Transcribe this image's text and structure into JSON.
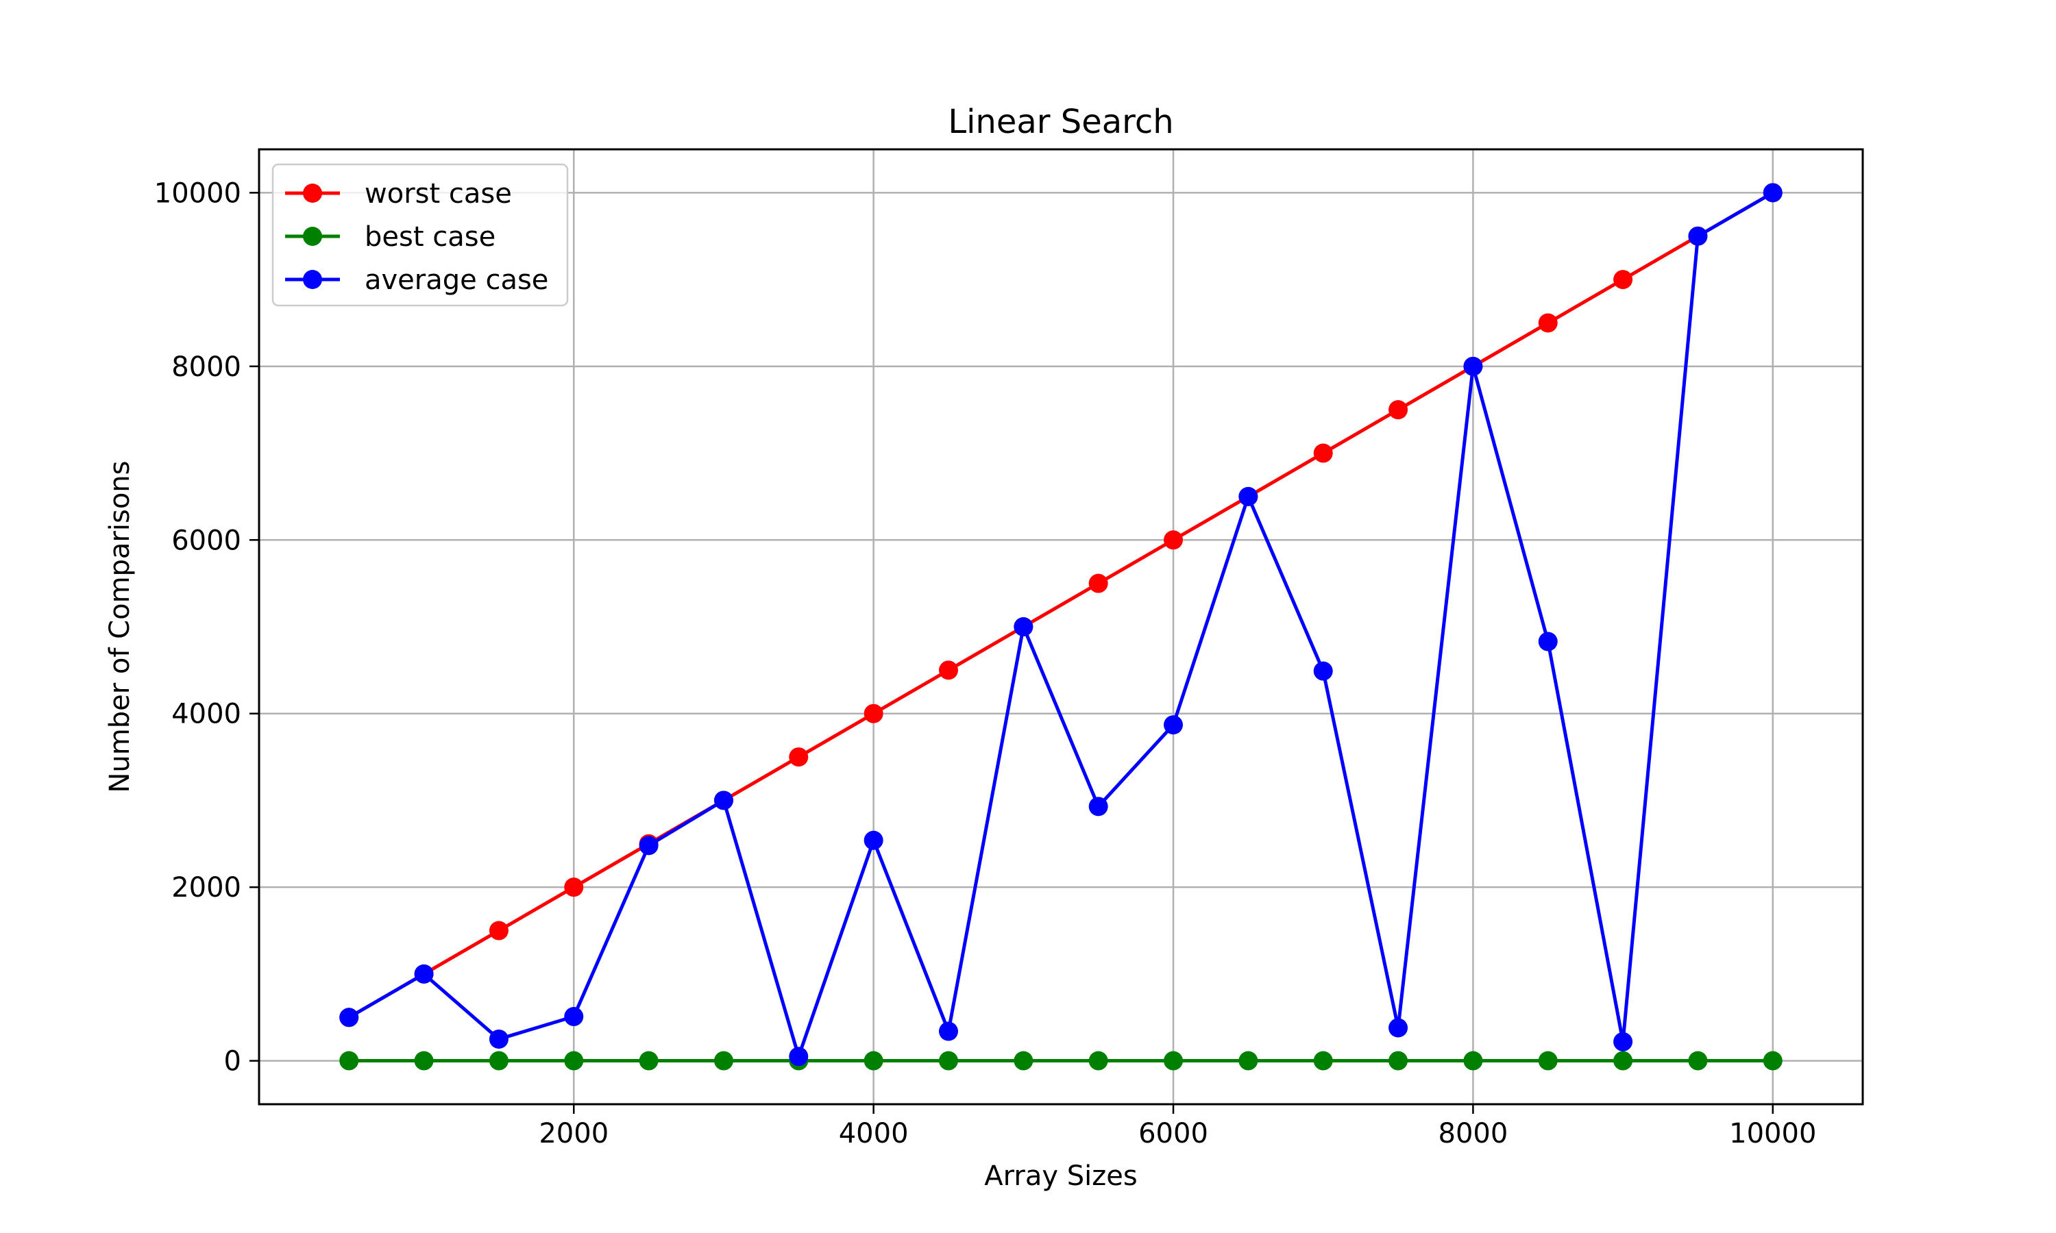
{
  "chart_data": {
    "type": "line",
    "title": "Linear Search",
    "xlabel": "Array Sizes",
    "ylabel": "Number of Comparisons",
    "xlim": [
      -100,
      10600
    ],
    "ylim": [
      -500,
      10500
    ],
    "xticks": [
      2000,
      4000,
      6000,
      8000,
      10000
    ],
    "yticks": [
      0,
      2000,
      4000,
      6000,
      8000,
      10000
    ],
    "grid": true,
    "legend_position": "top-left",
    "x": [
      500,
      1000,
      1500,
      2000,
      2500,
      3000,
      3500,
      4000,
      4500,
      5000,
      5500,
      6000,
      6500,
      7000,
      7500,
      8000,
      8500,
      9000,
      9500,
      10000
    ],
    "series": [
      {
        "name": "worst case",
        "color": "#ff0000",
        "values": [
          500,
          1000,
          1500,
          2000,
          2500,
          3000,
          3500,
          4000,
          4500,
          5000,
          5500,
          6000,
          6500,
          7000,
          7500,
          8000,
          8500,
          9000,
          9500,
          10000
        ]
      },
      {
        "name": "best case",
        "color": "#008000",
        "values": [
          1,
          1,
          1,
          1,
          1,
          1,
          1,
          1,
          1,
          1,
          1,
          1,
          1,
          1,
          1,
          1,
          1,
          1,
          1,
          1
        ]
      },
      {
        "name": "average case",
        "color": "#0000ff",
        "values": [
          500,
          1000,
          250,
          510,
          2480,
          3000,
          50,
          2540,
          340,
          5000,
          2930,
          3870,
          6500,
          4490,
          380,
          8000,
          4830,
          220,
          9500,
          10000
        ]
      }
    ]
  }
}
